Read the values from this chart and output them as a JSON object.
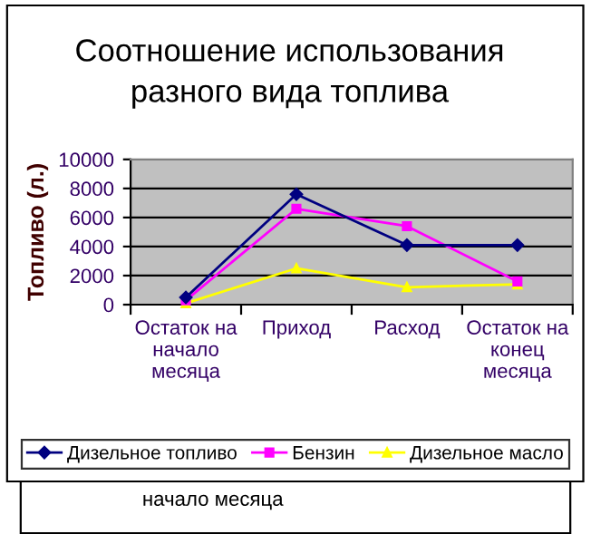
{
  "chart_data": {
    "type": "line",
    "title": "Соотношение использования разного вида топлива",
    "ylabel": "Топливо (л.)",
    "categories": [
      "Остаток на начало месяца",
      "Приход",
      "Расход",
      "Остаток на конец месяца"
    ],
    "series": [
      {
        "name": "Дизельное топливо",
        "color": "#000080",
        "marker": "diamond",
        "values": [
          500,
          7600,
          4100,
          4100
        ]
      },
      {
        "name": "Бензин",
        "color": "#ff00ff",
        "marker": "square",
        "values": [
          300,
          6600,
          5400,
          1600
        ]
      },
      {
        "name": "Дизельное масло",
        "color": "#ffff00",
        "marker": "triangle",
        "values": [
          100,
          2500,
          1200,
          1400
        ]
      }
    ],
    "ylim": [
      0,
      10000
    ],
    "yticks": [
      0,
      2000,
      4000,
      6000,
      8000,
      10000
    ],
    "grid": "y",
    "legend": "bottom",
    "annotations": [
      "начало месяца"
    ]
  }
}
